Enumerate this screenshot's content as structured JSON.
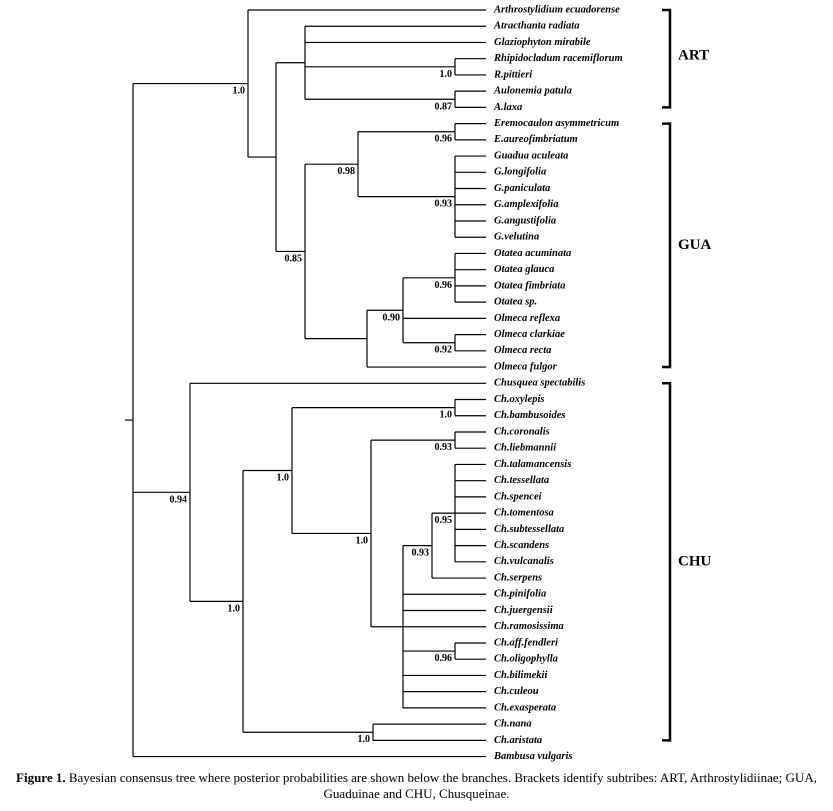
{
  "tree": {
    "children": [
      {
        "support": "1.0",
        "children": [
          {
            "label": "Arthrostylidium ecuadorense"
          },
          {
            "children": [
              {
                "children": [
                  {
                    "label": "Atracthanta radiata"
                  },
                  {
                    "label": "Glaziophyton mirabile"
                  },
                  {
                    "support": "1.0",
                    "children": [
                      {
                        "label": "Rhipidocladum racemiflorum"
                      },
                      {
                        "label": "R.pittieri"
                      }
                    ]
                  },
                  {
                    "support": "0.87",
                    "children": [
                      {
                        "label": "Aulonemia patula"
                      },
                      {
                        "label": "A.laxa"
                      }
                    ]
                  }
                ]
              },
              {
                "support": "0.85",
                "children": [
                  {
                    "support": "0.98",
                    "children": [
                      {
                        "support": "0.96",
                        "children": [
                          {
                            "label": "Eremocaulon asymmetricum"
                          },
                          {
                            "label": "E.aureofimbriatum"
                          }
                        ]
                      },
                      {
                        "support": "0.93",
                        "children": [
                          {
                            "label": "Guadua aculeata"
                          },
                          {
                            "label": "G.longifolia"
                          },
                          {
                            "label": "G.paniculata"
                          },
                          {
                            "label": "G.amplexifolia"
                          },
                          {
                            "label": "G.angustifolia"
                          },
                          {
                            "label": "G.velutina"
                          }
                        ]
                      }
                    ]
                  },
                  {
                    "children": [
                      {
                        "support": "0.90",
                        "children": [
                          {
                            "support": "0.96",
                            "children": [
                              {
                                "label": "Otatea acuminata"
                              },
                              {
                                "label": "Otatea glauca"
                              },
                              {
                                "label": "Otatea fimbriata"
                              },
                              {
                                "label": "Otatea sp."
                              }
                            ]
                          },
                          {
                            "label": "Olmeca reflexa"
                          },
                          {
                            "support": "0.92",
                            "children": [
                              {
                                "label": "Olmeca clarkiae"
                              },
                              {
                                "label": "Olmeca recta"
                              }
                            ]
                          }
                        ]
                      },
                      {
                        "label": "Olmeca fulgor"
                      }
                    ]
                  }
                ]
              }
            ]
          }
        ]
      },
      {
        "support": "0.94",
        "children": [
          {
            "label": "Chusquea spectabilis"
          },
          {
            "support": "1.0",
            "children": [
              {
                "support": "1.0",
                "children": [
                  {
                    "support": "1.0",
                    "children": [
                      {
                        "label": "Ch.oxylepis"
                      },
                      {
                        "label": "Ch.bambusoides"
                      }
                    ]
                  },
                  {
                    "support": "1.0",
                    "children": [
                      {
                        "support": "0.93",
                        "children": [
                          {
                            "label": "Ch.coronalis"
                          },
                          {
                            "label": "Ch.liebmannii"
                          }
                        ]
                      },
                      {
                        "children": [
                          {
                            "support": "0.93",
                            "children": [
                              {
                                "support": "0.95",
                                "children": [
                                  {
                                    "label": "Ch.talamancensis"
                                  },
                                  {
                                    "label": "Ch.tessellata"
                                  },
                                  {
                                    "label": "Ch.spencei"
                                  },
                                  {
                                    "label": "Ch.tomentosa"
                                  },
                                  {
                                    "label": "Ch.subtessellata"
                                  },
                                  {
                                    "label": "Ch.scandens"
                                  },
                                  {
                                    "label": "Ch.vulcanalis"
                                  }
                                ]
                              },
                              {
                                "label": "Ch.serpens"
                              }
                            ]
                          },
                          {
                            "label": "Ch.pinifolia"
                          },
                          {
                            "label": "Ch.juergensii"
                          },
                          {
                            "label": "Ch.ramosissima"
                          },
                          {
                            "support": "0.96",
                            "children": [
                              {
                                "label": "Ch.aff.fendleri"
                              },
                              {
                                "label": "Ch.oligophylla"
                              }
                            ]
                          },
                          {
                            "label": "Ch.bilimekii"
                          },
                          {
                            "label": "Ch.culeou"
                          },
                          {
                            "label": "Ch.exasperata"
                          }
                        ]
                      }
                    ]
                  }
                ]
              },
              {
                "support": "1.0",
                "children": [
                  {
                    "label": "Ch.nana"
                  },
                  {
                    "label": "Ch.aristata"
                  }
                ]
              }
            ]
          }
        ]
      },
      {
        "label": "Bambusa vulgaris"
      }
    ]
  },
  "brackets": [
    {
      "label": "ART"
    },
    {
      "label": "GUA"
    },
    {
      "label": "CHU"
    }
  ],
  "caption": {
    "label": "Figure 1.",
    "text": "Bayesian consensus tree where posterior probabilities are shown below the branches. Brackets identify subtribes: ART, Arthrostylidiinae; GUA, Guaduinae and CHU, Chusqueinae."
  }
}
